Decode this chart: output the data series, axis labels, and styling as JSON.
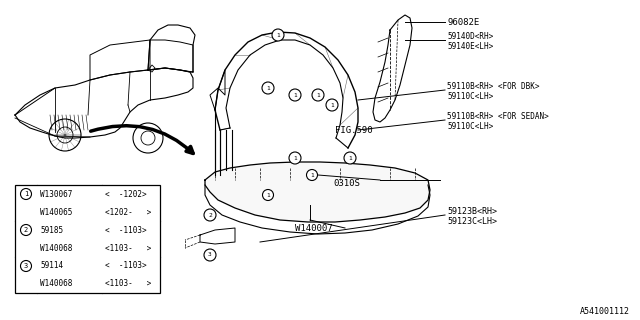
{
  "bg_color": "#ffffff",
  "line_color": "#000000",
  "text_color": "#000000",
  "labels": {
    "part_96082E": "96082E",
    "part_59140D": "59140D<RH>",
    "part_59140E": "59140E<LH>",
    "part_59110B_dbk": "59110B<RH> <FOR DBK>",
    "part_59110C_dbk": "59110C<LH>",
    "part_59110B_sed": "59110B<RH> <FOR SEDAN>",
    "part_59110C_sed": "59110C<LH>",
    "part_0310S": "0310S",
    "part_W140007": "W140007",
    "part_59123B": "59123B<RH>",
    "part_59123C": "59123C<LH>",
    "fig590": "FIG.590",
    "diagram_ref": "A541001112"
  },
  "table": {
    "rows": [
      [
        "1",
        "W130067",
        "<  -1202>"
      ],
      [
        "",
        "W140065",
        "<1202-   >"
      ],
      [
        "2",
        "59185",
        "<  -1103>"
      ],
      [
        "",
        "W140068",
        "<1103-   >"
      ],
      [
        "3",
        "59114",
        "<  -1103>"
      ],
      [
        "",
        "W140068",
        "<1103-   >"
      ]
    ]
  }
}
